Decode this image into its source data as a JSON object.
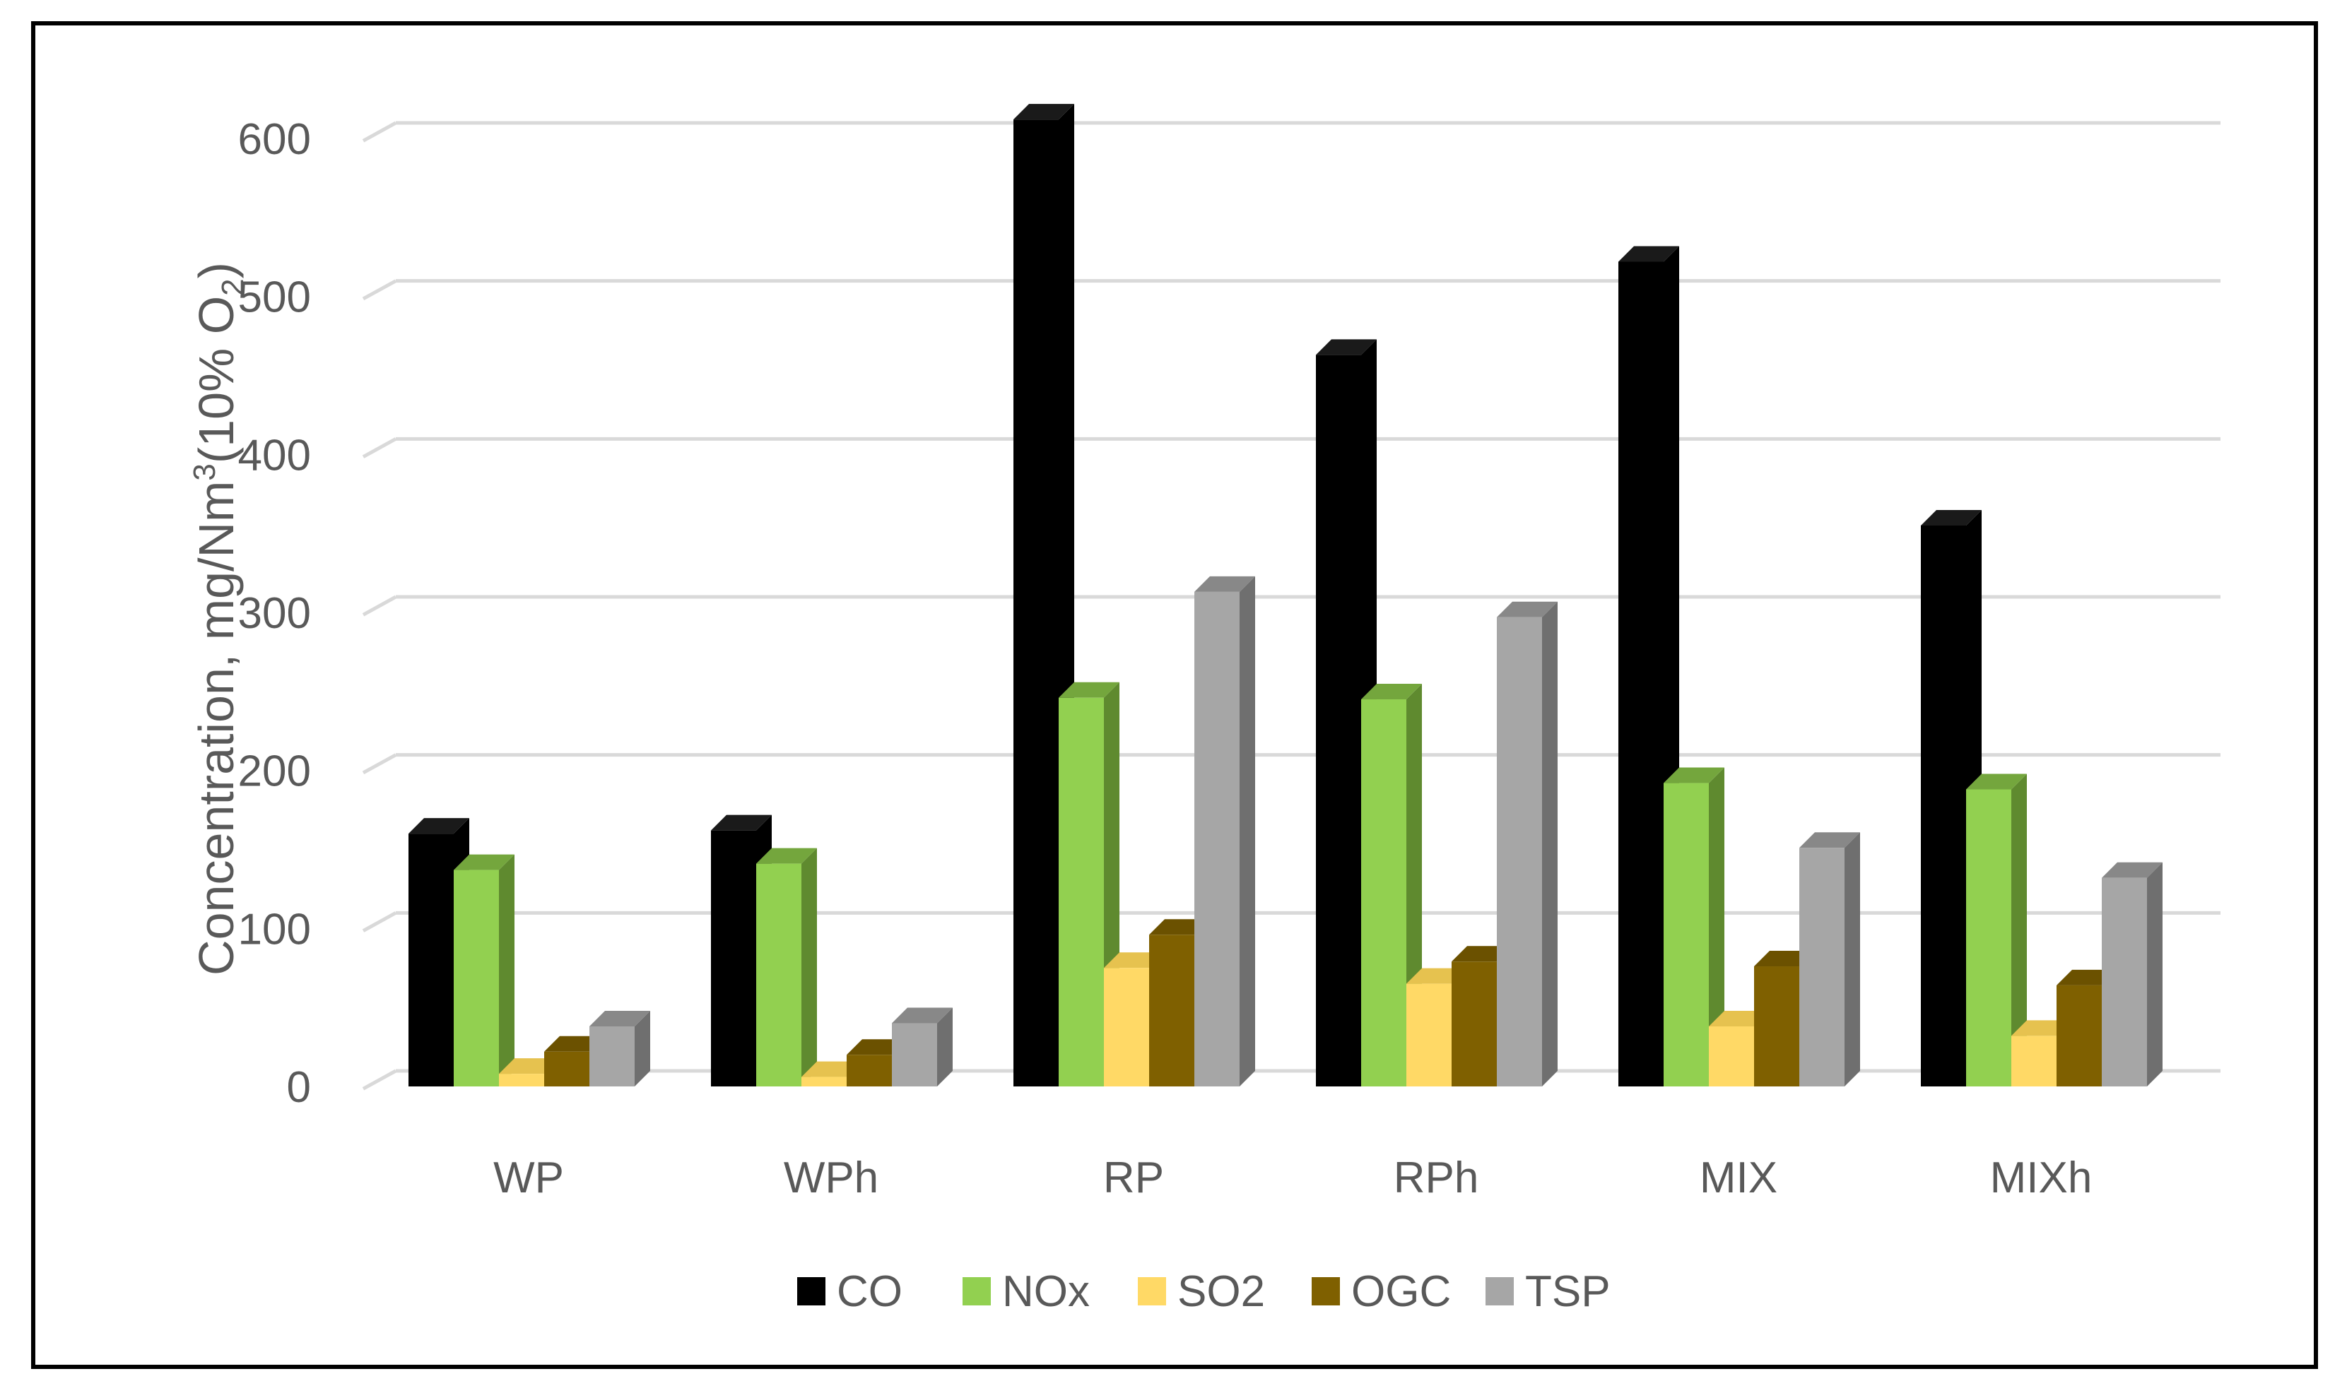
{
  "chart_data": {
    "type": "bar",
    "style": "3d-clustered-column",
    "title": "",
    "xlabel": "",
    "ylabel": "Concentration, mg/Nm3(10% O2)",
    "ylabel_parts": {
      "pre": "Concentration, mg/Nm",
      "sup": "3",
      "mid": "(10% O",
      "sub": "2",
      "post": ")"
    },
    "ylim": [
      0,
      600
    ],
    "yticks": [
      0,
      100,
      200,
      300,
      400,
      500,
      600
    ],
    "grid": true,
    "legend_position": "bottom",
    "categories": [
      "WP",
      "WPh",
      "RP",
      "RPh",
      "MIX",
      "MIXh"
    ],
    "series": [
      {
        "name": "CO",
        "color": "#000000",
        "side": "#000000",
        "top": "#1a1a1a",
        "values": [
          160,
          162,
          612,
          463,
          522,
          355
        ]
      },
      {
        "name": "NOx",
        "color": "#92d050",
        "side": "#5f8a2f",
        "top": "#74a63d",
        "values": [
          137,
          141,
          246,
          245,
          192,
          188
        ]
      },
      {
        "name": "SO2",
        "color": "#ffd966",
        "side": "#c9a640",
        "top": "#e6c24f",
        "values": [
          8,
          6,
          75,
          65,
          38,
          32
        ]
      },
      {
        "name": "OGC",
        "color": "#7f6000",
        "side": "#5a4400",
        "top": "#6b5100",
        "values": [
          22,
          20,
          96,
          79,
          76,
          64
        ]
      },
      {
        "name": "TSP",
        "color": "#a6a6a6",
        "side": "#6f6f6f",
        "top": "#888888",
        "values": [
          38,
          40,
          313,
          297,
          151,
          132
        ]
      }
    ]
  }
}
